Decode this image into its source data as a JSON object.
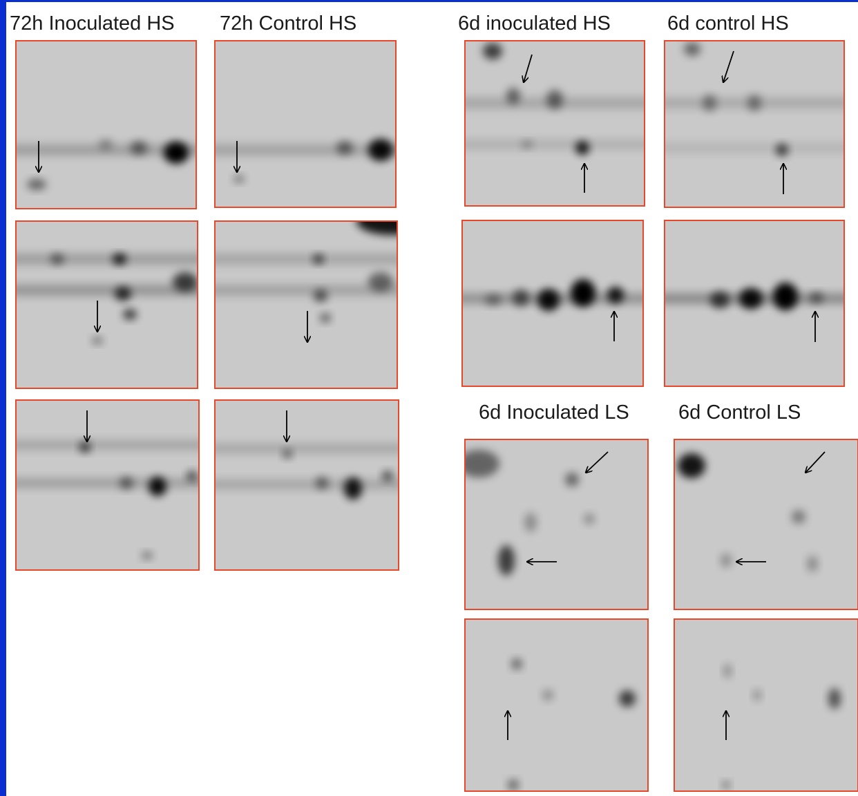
{
  "labels": [
    "72h Inoculated HS",
    "72h Control HS",
    "6d inoculated HS",
    "6d control HS",
    "6d Inoculated LS",
    "6d Control LS"
  ]
}
